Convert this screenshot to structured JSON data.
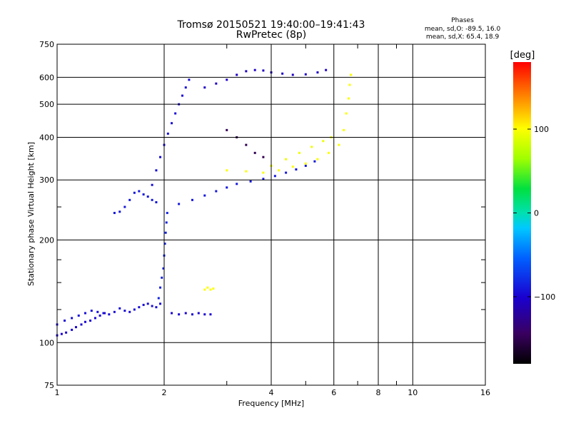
{
  "chart_data": {
    "type": "scatter",
    "title": "Tromsø 20150521 19:40:00–19:41:43",
    "subtitle": "RwPretec (8p)",
    "stats": {
      "heading": "Phases",
      "line_o": "mean, sd,O: -89.5, 16.0",
      "line_x": "mean, sd,X:  65.4, 18.9"
    },
    "xlabel": "Frequency [MHz]",
    "ylabel": "Stationary phase Virtual Height [km]",
    "x_scale": "log",
    "y_scale": "log",
    "xlim": [
      1,
      16
    ],
    "ylim": [
      75,
      750
    ],
    "x_ticks": [
      1,
      2,
      4,
      6,
      8,
      10,
      16
    ],
    "x_tick_labels": [
      "1",
      "2",
      "4",
      "6",
      "8",
      "10",
      "16"
    ],
    "x_minor_ticks": [
      3,
      5,
      7,
      9
    ],
    "y_ticks": [
      75,
      100,
      200,
      300,
      400,
      500,
      600,
      750
    ],
    "y_tick_labels": [
      "75",
      "100",
      "200",
      "300",
      "400",
      "500",
      "600",
      "750"
    ],
    "y_minor_ticks": [
      125,
      150,
      175,
      250
    ],
    "grid": true,
    "colorbar": {
      "label": "[deg]",
      "range": [
        -180,
        180
      ],
      "ticks": [
        100,
        0,
        -100
      ],
      "tick_labels": [
        "100",
        "0",
        "−100"
      ]
    },
    "series": [
      {
        "trace": "E-layer rising blue low",
        "phase": -100,
        "points": [
          [
            1.0,
            105
          ],
          [
            1.03,
            106
          ],
          [
            1.06,
            107
          ],
          [
            1.1,
            109
          ],
          [
            1.13,
            111
          ],
          [
            1.17,
            113
          ],
          [
            1.2,
            115
          ],
          [
            1.24,
            116
          ],
          [
            1.28,
            118
          ],
          [
            1.32,
            120
          ],
          [
            1.36,
            122
          ]
        ]
      },
      {
        "trace": "E-layer blue band upper",
        "phase": -95,
        "points": [
          [
            1.0,
            113
          ],
          [
            1.05,
            116
          ],
          [
            1.1,
            118
          ],
          [
            1.15,
            120
          ],
          [
            1.2,
            122
          ],
          [
            1.25,
            124
          ],
          [
            1.3,
            123
          ],
          [
            1.35,
            122
          ],
          [
            1.4,
            121
          ],
          [
            1.45,
            123
          ],
          [
            1.5,
            126
          ],
          [
            1.55,
            124
          ],
          [
            1.6,
            123
          ],
          [
            1.65,
            125
          ],
          [
            1.7,
            127
          ],
          [
            1.75,
            129
          ],
          [
            1.8,
            130
          ],
          [
            1.85,
            128
          ],
          [
            1.9,
            127
          ],
          [
            1.95,
            130
          ]
        ]
      },
      {
        "trace": "steep rise near 2 MHz",
        "phase": -85,
        "points": [
          [
            1.93,
            135
          ],
          [
            1.95,
            145
          ],
          [
            1.97,
            155
          ],
          [
            1.99,
            165
          ],
          [
            2.0,
            180
          ],
          [
            2.01,
            195
          ],
          [
            2.02,
            210
          ],
          [
            2.03,
            225
          ],
          [
            2.04,
            240
          ]
        ]
      },
      {
        "trace": "F trace lower branch",
        "phase": -90,
        "points": [
          [
            1.45,
            240
          ],
          [
            1.5,
            242
          ],
          [
            1.55,
            250
          ],
          [
            1.6,
            262
          ],
          [
            1.65,
            275
          ],
          [
            1.7,
            278
          ],
          [
            1.75,
            272
          ],
          [
            1.8,
            268
          ],
          [
            1.85,
            262
          ],
          [
            1.9,
            258
          ]
        ]
      },
      {
        "trace": "F trace main cusp curve",
        "phase": -90,
        "points": [
          [
            2.2,
            255
          ],
          [
            2.4,
            262
          ],
          [
            2.6,
            270
          ],
          [
            2.8,
            278
          ],
          [
            3.0,
            285
          ],
          [
            3.2,
            292
          ],
          [
            3.5,
            297
          ],
          [
            3.8,
            302
          ],
          [
            4.1,
            308
          ],
          [
            4.4,
            315
          ],
          [
            4.7,
            322
          ],
          [
            5.0,
            330
          ],
          [
            5.3,
            340
          ]
        ]
      },
      {
        "trace": "O-mode spread F column",
        "phase": -95,
        "points": [
          [
            1.85,
            290
          ],
          [
            1.9,
            320
          ],
          [
            1.95,
            350
          ],
          [
            2.0,
            380
          ],
          [
            2.05,
            410
          ],
          [
            2.1,
            440
          ],
          [
            2.15,
            470
          ],
          [
            2.2,
            500
          ],
          [
            2.25,
            530
          ],
          [
            2.3,
            560
          ],
          [
            2.35,
            590
          ]
        ]
      },
      {
        "trace": "O-mode upper cusp",
        "phase": -105,
        "points": [
          [
            2.6,
            560
          ],
          [
            2.8,
            575
          ],
          [
            3.0,
            590
          ],
          [
            3.2,
            610
          ],
          [
            3.4,
            625
          ],
          [
            3.6,
            630
          ],
          [
            3.8,
            628
          ],
          [
            4.0,
            620
          ],
          [
            4.3,
            615
          ],
          [
            4.6,
            610
          ],
          [
            5.0,
            612
          ],
          [
            5.4,
            620
          ],
          [
            5.7,
            630
          ]
        ]
      },
      {
        "trace": "X-mode yellow upper",
        "phase": 100,
        "points": [
          [
            3.0,
            320
          ],
          [
            3.4,
            318
          ],
          [
            3.8,
            315
          ],
          [
            4.2,
            320
          ],
          [
            4.6,
            328
          ],
          [
            5.0,
            335
          ],
          [
            5.4,
            345
          ],
          [
            5.8,
            360
          ],
          [
            6.2,
            380
          ],
          [
            6.4,
            420
          ],
          [
            6.5,
            470
          ],
          [
            6.6,
            520
          ],
          [
            6.65,
            570
          ],
          [
            6.7,
            610
          ]
        ]
      },
      {
        "trace": "X-mode yellow lower",
        "phase": 95,
        "points": [
          [
            4.0,
            330
          ],
          [
            4.4,
            345
          ],
          [
            4.8,
            360
          ],
          [
            5.2,
            375
          ],
          [
            5.6,
            390
          ],
          [
            5.9,
            400
          ]
        ]
      },
      {
        "trace": "purple scatter mid",
        "phase": -150,
        "points": [
          [
            3.0,
            420
          ],
          [
            3.2,
            400
          ],
          [
            3.4,
            380
          ],
          [
            3.6,
            360
          ],
          [
            3.8,
            350
          ]
        ]
      },
      {
        "trace": "E-sporadic yellow",
        "phase": 100,
        "points": [
          [
            2.6,
            143
          ],
          [
            2.65,
            145
          ],
          [
            2.7,
            143
          ],
          [
            2.75,
            144
          ]
        ]
      },
      {
        "trace": "E-sporadic blue",
        "phase": -100,
        "points": [
          [
            2.1,
            122
          ],
          [
            2.2,
            121
          ],
          [
            2.3,
            122
          ],
          [
            2.4,
            121
          ],
          [
            2.5,
            122
          ],
          [
            2.6,
            121
          ],
          [
            2.7,
            121
          ]
        ]
      }
    ]
  }
}
